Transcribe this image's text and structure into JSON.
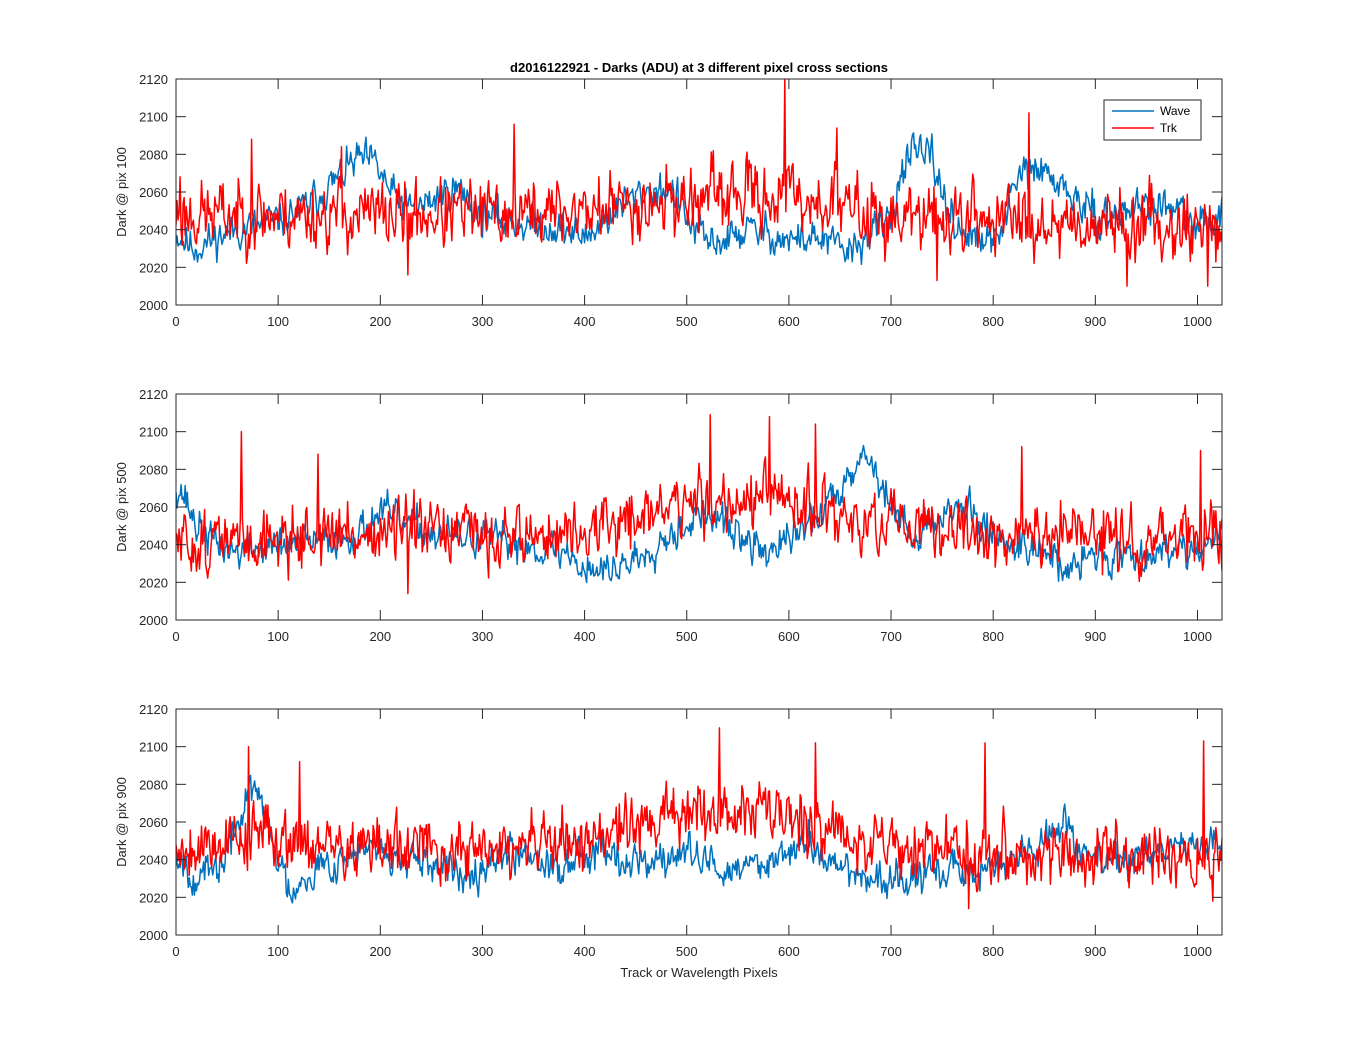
{
  "figure": {
    "title": "d2016122921 - Darks (ADU) at 3 different pixel cross sections"
  },
  "colors": {
    "wave": "#0072BD",
    "trk": "#FF0000",
    "axes": "#262626"
  },
  "chart_data": [
    {
      "type": "line",
      "title": "d2016122921 - Darks (ADU) at 3 different pixel cross sections",
      "xlabel": "",
      "ylabel": "Dark @ pix 100",
      "xlim": [
        0,
        1024
      ],
      "ylim": [
        2000,
        2120
      ],
      "xticks": [
        0,
        100,
        200,
        300,
        400,
        500,
        600,
        700,
        800,
        900,
        1000
      ],
      "yticks": [
        2000,
        2020,
        2040,
        2060,
        2080,
        2100,
        2120
      ],
      "grid": false,
      "legend": {
        "placement": "top-right",
        "entries": [
          "Wave",
          "Trk"
        ]
      },
      "series": [
        {
          "name": "Wave",
          "color": "#0072BD",
          "noise": 7,
          "seed": 11,
          "anchors": [
            [
              0,
              2038
            ],
            [
              10,
              2033
            ],
            [
              20,
              2030
            ],
            [
              40,
              2036
            ],
            [
              60,
              2040
            ],
            [
              80,
              2042
            ],
            [
              100,
              2045
            ],
            [
              120,
              2050
            ],
            [
              140,
              2058
            ],
            [
              160,
              2068
            ],
            [
              170,
              2074
            ],
            [
              180,
              2078
            ],
            [
              195,
              2075
            ],
            [
              210,
              2060
            ],
            [
              230,
              2050
            ],
            [
              250,
              2055
            ],
            [
              270,
              2062
            ],
            [
              280,
              2060
            ],
            [
              300,
              2048
            ],
            [
              320,
              2045
            ],
            [
              340,
              2043
            ],
            [
              360,
              2042
            ],
            [
              380,
              2040
            ],
            [
              400,
              2036
            ],
            [
              420,
              2045
            ],
            [
              440,
              2055
            ],
            [
              460,
              2060
            ],
            [
              480,
              2062
            ],
            [
              490,
              2058
            ],
            [
              500,
              2045
            ],
            [
              520,
              2033
            ],
            [
              540,
              2035
            ],
            [
              560,
              2040
            ],
            [
              580,
              2038
            ],
            [
              600,
              2034
            ],
            [
              620,
              2036
            ],
            [
              640,
              2033
            ],
            [
              660,
              2028
            ],
            [
              680,
              2038
            ],
            [
              700,
              2045
            ],
            [
              710,
              2072
            ],
            [
              720,
              2080
            ],
            [
              740,
              2078
            ],
            [
              750,
              2060
            ],
            [
              760,
              2045
            ],
            [
              780,
              2035
            ],
            [
              800,
              2032
            ],
            [
              810,
              2045
            ],
            [
              820,
              2060
            ],
            [
              830,
              2072
            ],
            [
              850,
              2070
            ],
            [
              870,
              2062
            ],
            [
              880,
              2056
            ],
            [
              900,
              2046
            ],
            [
              920,
              2048
            ],
            [
              940,
              2053
            ],
            [
              960,
              2053
            ],
            [
              980,
              2050
            ],
            [
              1000,
              2040
            ],
            [
              1024,
              2050
            ]
          ]
        },
        {
          "name": "Trk",
          "color": "#FF0000",
          "noise": 13,
          "seed": 23,
          "anchors": [
            [
              0,
              2048
            ],
            [
              100,
              2048
            ],
            [
              200,
              2048
            ],
            [
              300,
              2048
            ],
            [
              400,
              2050
            ],
            [
              450,
              2054
            ],
            [
              500,
              2056
            ],
            [
              550,
              2058
            ],
            [
              600,
              2058
            ],
            [
              650,
              2053
            ],
            [
              700,
              2046
            ],
            [
              800,
              2046
            ],
            [
              900,
              2044
            ],
            [
              1024,
              2042
            ]
          ],
          "spikes": [
            [
              4,
              2068
            ],
            [
              74,
              2088
            ],
            [
              162,
              2084
            ],
            [
              227,
              2016
            ],
            [
              331,
              2096
            ],
            [
              596,
              2120
            ],
            [
              647,
              2094
            ],
            [
              745,
              2013
            ],
            [
              835,
              2102
            ],
            [
              931,
              2010
            ],
            [
              1010,
              2010
            ]
          ]
        }
      ]
    },
    {
      "type": "line",
      "title": "",
      "xlabel": "",
      "ylabel": "Dark @ pix 500",
      "xlim": [
        0,
        1024
      ],
      "ylim": [
        2000,
        2120
      ],
      "xticks": [
        0,
        100,
        200,
        300,
        400,
        500,
        600,
        700,
        800,
        900,
        1000
      ],
      "yticks": [
        2000,
        2020,
        2040,
        2060,
        2080,
        2100,
        2120
      ],
      "grid": false,
      "series": [
        {
          "name": "Wave",
          "color": "#0072BD",
          "noise": 7,
          "seed": 37,
          "anchors": [
            [
              0,
              2072
            ],
            [
              8,
              2066
            ],
            [
              20,
              2050
            ],
            [
              40,
              2040
            ],
            [
              60,
              2036
            ],
            [
              80,
              2038
            ],
            [
              100,
              2040
            ],
            [
              120,
              2040
            ],
            [
              140,
              2042
            ],
            [
              160,
              2044
            ],
            [
              180,
              2046
            ],
            [
              200,
              2058
            ],
            [
              220,
              2052
            ],
            [
              240,
              2048
            ],
            [
              260,
              2045
            ],
            [
              280,
              2044
            ],
            [
              300,
              2043
            ],
            [
              320,
              2042
            ],
            [
              340,
              2040
            ],
            [
              360,
              2038
            ],
            [
              380,
              2036
            ],
            [
              400,
              2028
            ],
            [
              420,
              2026
            ],
            [
              440,
              2030
            ],
            [
              460,
              2036
            ],
            [
              480,
              2045
            ],
            [
              500,
              2052
            ],
            [
              520,
              2056
            ],
            [
              540,
              2050
            ],
            [
              560,
              2040
            ],
            [
              580,
              2036
            ],
            [
              600,
              2042
            ],
            [
              620,
              2052
            ],
            [
              640,
              2062
            ],
            [
              660,
              2080
            ],
            [
              670,
              2088
            ],
            [
              680,
              2085
            ],
            [
              700,
              2060
            ],
            [
              720,
              2045
            ],
            [
              740,
              2050
            ],
            [
              760,
              2062
            ],
            [
              780,
              2055
            ],
            [
              800,
              2045
            ],
            [
              820,
              2040
            ],
            [
              840,
              2040
            ],
            [
              860,
              2034
            ],
            [
              870,
              2020
            ],
            [
              880,
              2030
            ],
            [
              900,
              2035
            ],
            [
              920,
              2034
            ],
            [
              940,
              2036
            ],
            [
              960,
              2035
            ],
            [
              980,
              2040
            ],
            [
              1000,
              2038
            ],
            [
              1024,
              2045
            ]
          ]
        },
        {
          "name": "Trk",
          "color": "#FF0000",
          "noise": 12,
          "seed": 51,
          "anchors": [
            [
              0,
              2040
            ],
            [
              100,
              2044
            ],
            [
              200,
              2046
            ],
            [
              300,
              2045
            ],
            [
              400,
              2045
            ],
            [
              450,
              2055
            ],
            [
              500,
              2062
            ],
            [
              550,
              2064
            ],
            [
              600,
              2062
            ],
            [
              650,
              2054
            ],
            [
              700,
              2048
            ],
            [
              800,
              2046
            ],
            [
              900,
              2044
            ],
            [
              1024,
              2042
            ]
          ],
          "spikes": [
            [
              64,
              2100
            ],
            [
              139,
              2088
            ],
            [
              227,
              2014
            ],
            [
              523,
              2109
            ],
            [
              581,
              2108
            ],
            [
              626,
              2104
            ],
            [
              828,
              2092
            ],
            [
              1003,
              2090
            ],
            [
              907,
              2024
            ]
          ]
        }
      ]
    },
    {
      "type": "line",
      "title": "",
      "xlabel": "Track or Wavelength Pixels",
      "ylabel": "Dark @ pix 900",
      "xlim": [
        0,
        1024
      ],
      "ylim": [
        2000,
        2120
      ],
      "xticks": [
        0,
        100,
        200,
        300,
        400,
        500,
        600,
        700,
        800,
        900,
        1000
      ],
      "yticks": [
        2000,
        2020,
        2040,
        2060,
        2080,
        2100,
        2120
      ],
      "grid": false,
      "series": [
        {
          "name": "Wave",
          "color": "#0072BD",
          "noise": 7,
          "seed": 67,
          "anchors": [
            [
              0,
              2045
            ],
            [
              20,
              2030
            ],
            [
              40,
              2034
            ],
            [
              55,
              2050
            ],
            [
              65,
              2066
            ],
            [
              72,
              2080
            ],
            [
              85,
              2068
            ],
            [
              100,
              2040
            ],
            [
              112,
              2022
            ],
            [
              120,
              2030
            ],
            [
              140,
              2036
            ],
            [
              160,
              2040
            ],
            [
              180,
              2045
            ],
            [
              200,
              2044
            ],
            [
              220,
              2040
            ],
            [
              240,
              2036
            ],
            [
              260,
              2034
            ],
            [
              280,
              2033
            ],
            [
              300,
              2038
            ],
            [
              320,
              2043
            ],
            [
              340,
              2046
            ],
            [
              360,
              2040
            ],
            [
              380,
              2035
            ],
            [
              400,
              2045
            ],
            [
              420,
              2048
            ],
            [
              440,
              2040
            ],
            [
              460,
              2038
            ],
            [
              480,
              2040
            ],
            [
              500,
              2044
            ],
            [
              520,
              2038
            ],
            [
              540,
              2033
            ],
            [
              560,
              2036
            ],
            [
              580,
              2040
            ],
            [
              600,
              2046
            ],
            [
              620,
              2048
            ],
            [
              640,
              2040
            ],
            [
              660,
              2034
            ],
            [
              680,
              2030
            ],
            [
              700,
              2028
            ],
            [
              720,
              2030
            ],
            [
              740,
              2032
            ],
            [
              760,
              2034
            ],
            [
              780,
              2033
            ],
            [
              800,
              2036
            ],
            [
              820,
              2040
            ],
            [
              840,
              2045
            ],
            [
              860,
              2055
            ],
            [
              870,
              2062
            ],
            [
              880,
              2050
            ],
            [
              900,
              2040
            ],
            [
              920,
              2038
            ],
            [
              940,
              2040
            ],
            [
              960,
              2045
            ],
            [
              980,
              2048
            ],
            [
              1000,
              2045
            ],
            [
              1024,
              2050
            ]
          ]
        },
        {
          "name": "Trk",
          "color": "#FF0000",
          "noise": 12,
          "seed": 79,
          "anchors": [
            [
              0,
              2046
            ],
            [
              60,
              2052
            ],
            [
              100,
              2054
            ],
            [
              150,
              2046
            ],
            [
              200,
              2046
            ],
            [
              300,
              2044
            ],
            [
              400,
              2050
            ],
            [
              450,
              2058
            ],
            [
              500,
              2064
            ],
            [
              550,
              2067
            ],
            [
              600,
              2064
            ],
            [
              650,
              2055
            ],
            [
              700,
              2048
            ],
            [
              800,
              2044
            ],
            [
              900,
              2042
            ],
            [
              1024,
              2042
            ]
          ],
          "spikes": [
            [
              71,
              2100
            ],
            [
              121,
              2092
            ],
            [
              532,
              2110
            ],
            [
              626,
              2102
            ],
            [
              792,
              2102
            ],
            [
              1006,
              2103
            ],
            [
              776,
              2014
            ],
            [
              1015,
              2018
            ]
          ]
        }
      ]
    }
  ]
}
